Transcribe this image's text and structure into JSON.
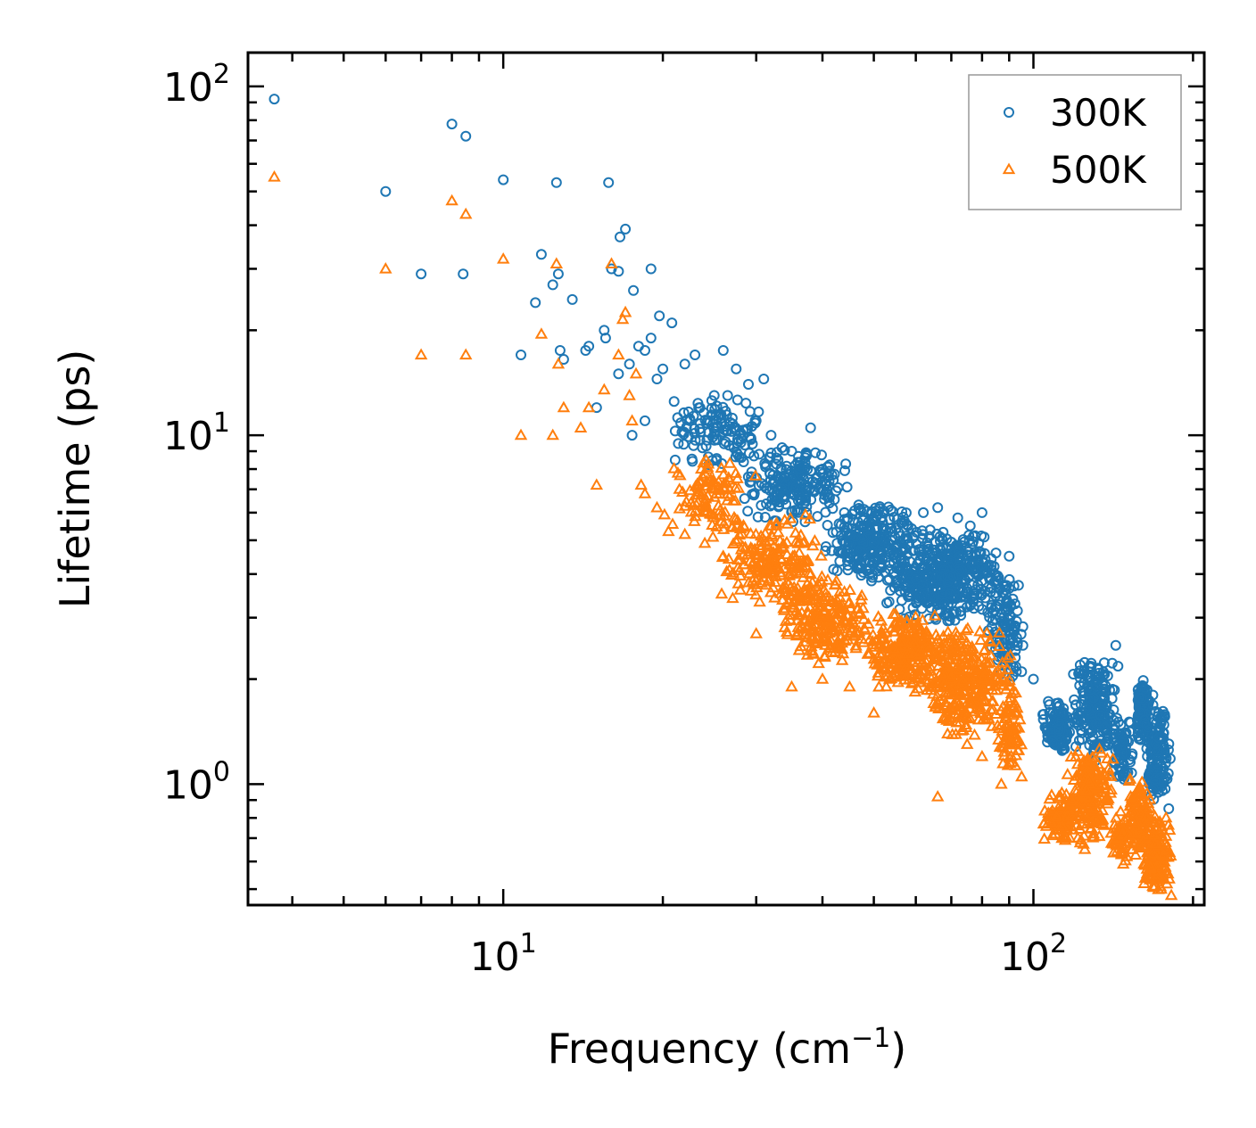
{
  "chart_data": {
    "type": "scatter",
    "title": "",
    "xlabel": "Frequency (cm",
    "xlabel_sup": "−1",
    "xlabel_end": ")",
    "ylabel": "Lifetime (ps)",
    "xscale": "log",
    "yscale": "log",
    "xlim": [
      3.3,
      210
    ],
    "ylim": [
      0.45,
      125
    ],
    "x_ticks": [
      {
        "value": 10,
        "base": "10",
        "exp": "1"
      },
      {
        "value": 100,
        "base": "10",
        "exp": "2"
      }
    ],
    "y_ticks": [
      {
        "value": 1,
        "base": "10",
        "exp": "0"
      },
      {
        "value": 10,
        "base": "10",
        "exp": "1"
      },
      {
        "value": 100,
        "base": "10",
        "exp": "2"
      }
    ],
    "legend_position": "top-right",
    "series": [
      {
        "name": "300K",
        "marker": "circle",
        "color": "#1f77b4",
        "points": [
          [
            3.7,
            92
          ],
          [
            6,
            50
          ],
          [
            7,
            29
          ],
          [
            8,
            78
          ],
          [
            8.4,
            29
          ],
          [
            8.5,
            72
          ],
          [
            10,
            54
          ],
          [
            10.8,
            17
          ],
          [
            11.5,
            24
          ],
          [
            11.8,
            33
          ],
          [
            12.4,
            27
          ],
          [
            12.6,
            53
          ],
          [
            12.7,
            29
          ],
          [
            12.8,
            17.5
          ],
          [
            13,
            16.5
          ],
          [
            13.5,
            24.5
          ],
          [
            14.3,
            17.5
          ],
          [
            14.5,
            18
          ],
          [
            15,
            12
          ],
          [
            15.5,
            20
          ],
          [
            15.6,
            19
          ],
          [
            15.8,
            53
          ],
          [
            16,
            30
          ],
          [
            16.5,
            15
          ],
          [
            16.5,
            29.5
          ],
          [
            16.6,
            37
          ],
          [
            17,
            39
          ],
          [
            17.3,
            16
          ],
          [
            17.5,
            10
          ],
          [
            17.6,
            26
          ],
          [
            18,
            18
          ],
          [
            18.5,
            17.5
          ],
          [
            18.5,
            11
          ],
          [
            19,
            30
          ],
          [
            19,
            19
          ],
          [
            19.5,
            14.5
          ],
          [
            19.7,
            22
          ],
          [
            20,
            15.5
          ],
          [
            20.8,
            21
          ],
          [
            21,
            12.5
          ],
          [
            22,
            16
          ],
          [
            22.5,
            11
          ],
          [
            23,
            17
          ],
          [
            23.5,
            12
          ],
          [
            25,
            13
          ],
          [
            26,
            17.5
          ],
          [
            26.5,
            13
          ],
          [
            27.5,
            15.5
          ],
          [
            29,
            14
          ],
          [
            30,
            11
          ],
          [
            31,
            14.5
          ],
          [
            32,
            10
          ],
          [
            33,
            8.5
          ],
          [
            35,
            9
          ],
          [
            38,
            10.5
          ],
          [
            40,
            8
          ],
          [
            44,
            6
          ],
          [
            48,
            5.5
          ],
          [
            52,
            6
          ],
          [
            58,
            5.5
          ],
          [
            62,
            6
          ],
          [
            66,
            6.2
          ],
          [
            72,
            5.8
          ],
          [
            76,
            5.5
          ],
          [
            80,
            6
          ],
          [
            85,
            4.6
          ],
          [
            90,
            4.5
          ],
          [
            95,
            2.1
          ],
          [
            100,
            2
          ],
          [
            143,
            2.5
          ],
          [
            168,
            1.8
          ],
          [
            180,
            0.85
          ]
        ],
        "regions": [
          {
            "x": [
              20,
              32
            ],
            "y": [
              8,
              13
            ],
            "n": 110
          },
          {
            "x": [
              28,
              45
            ],
            "y": [
              5.5,
              9.5
            ],
            "n": 200
          },
          {
            "x": [
              40,
              60
            ],
            "y": [
              3.8,
              6.5
            ],
            "n": 260
          },
          {
            "x": [
              52,
              88
            ],
            "y": [
              2.8,
              5.5
            ],
            "n": 460
          },
          {
            "x": [
              82,
              96
            ],
            "y": [
              1.9,
              4.4
            ],
            "n": 110
          },
          {
            "x": [
              104,
              118
            ],
            "y": [
              1.2,
              1.75
            ],
            "n": 110
          },
          {
            "x": [
              118,
              145
            ],
            "y": [
              1.15,
              2.4
            ],
            "n": 210
          },
          {
            "x": [
              140,
              155
            ],
            "y": [
              1,
              1.6
            ],
            "n": 70
          },
          {
            "x": [
              155,
              166
            ],
            "y": [
              1.3,
              2.05
            ],
            "n": 110
          },
          {
            "x": [
              162,
              182
            ],
            "y": [
              0.85,
              1.75
            ],
            "n": 140
          }
        ]
      },
      {
        "name": "500K",
        "marker": "triangle",
        "color": "#ff7f0e",
        "points": [
          [
            3.7,
            55
          ],
          [
            6,
            30
          ],
          [
            7,
            17
          ],
          [
            8,
            47
          ],
          [
            8.5,
            43
          ],
          [
            8.5,
            17
          ],
          [
            10,
            32
          ],
          [
            10.8,
            10
          ],
          [
            11.8,
            19.5
          ],
          [
            12.4,
            10
          ],
          [
            12.6,
            31
          ],
          [
            12.7,
            16
          ],
          [
            13,
            12
          ],
          [
            14,
            10.5
          ],
          [
            14.5,
            12
          ],
          [
            15,
            7.2
          ],
          [
            15.5,
            13.5
          ],
          [
            16,
            31
          ],
          [
            16.5,
            17
          ],
          [
            16.8,
            21.5
          ],
          [
            17,
            22.5
          ],
          [
            17.3,
            13
          ],
          [
            17.5,
            11
          ],
          [
            17.8,
            15
          ],
          [
            18.2,
            7.2
          ],
          [
            18.5,
            6.8
          ],
          [
            19.5,
            6.2
          ],
          [
            20.5,
            5.3
          ],
          [
            21.5,
            7
          ],
          [
            22,
            5.2
          ],
          [
            24,
            4.9
          ],
          [
            26,
            4.5
          ],
          [
            28,
            3.6
          ],
          [
            30,
            2.7
          ],
          [
            35,
            1.9
          ],
          [
            40,
            2
          ],
          [
            45,
            1.9
          ],
          [
            50,
            1.6
          ],
          [
            66,
            0.92
          ],
          [
            75,
            1.3
          ],
          [
            80,
            1.2
          ],
          [
            87,
            1
          ],
          [
            95,
            1.05
          ],
          [
            110,
            0.72
          ],
          [
            125,
            0.65
          ],
          [
            150,
            0.62
          ],
          [
            168,
            0.51
          ],
          [
            182,
            0.48
          ]
        ],
        "regions": [
          {
            "x": [
              20,
              30
            ],
            "y": [
              5,
              9
            ],
            "n": 100
          },
          {
            "x": [
              25,
              40
            ],
            "y": [
              3.2,
              6
            ],
            "n": 200
          },
          {
            "x": [
              33,
              50
            ],
            "y": [
              2.2,
              4
            ],
            "n": 230
          },
          {
            "x": [
              48,
              68
            ],
            "y": [
              1.8,
              3.2
            ],
            "n": 260
          },
          {
            "x": [
              60,
              92
            ],
            "y": [
              1.35,
              2.9
            ],
            "n": 330
          },
          {
            "x": [
              85,
              96
            ],
            "y": [
              1.05,
              2
            ],
            "n": 80
          },
          {
            "x": [
              104,
              120
            ],
            "y": [
              0.68,
              0.95
            ],
            "n": 90
          },
          {
            "x": [
              115,
              142
            ],
            "y": [
              0.66,
              1.3
            ],
            "n": 200
          },
          {
            "x": [
              140,
              153
            ],
            "y": [
              0.58,
              0.85
            ],
            "n": 60
          },
          {
            "x": [
              150,
              168
            ],
            "y": [
              0.6,
              1.05
            ],
            "n": 110
          },
          {
            "x": [
              160,
              182
            ],
            "y": [
              0.48,
              0.82
            ],
            "n": 150
          }
        ]
      }
    ]
  }
}
